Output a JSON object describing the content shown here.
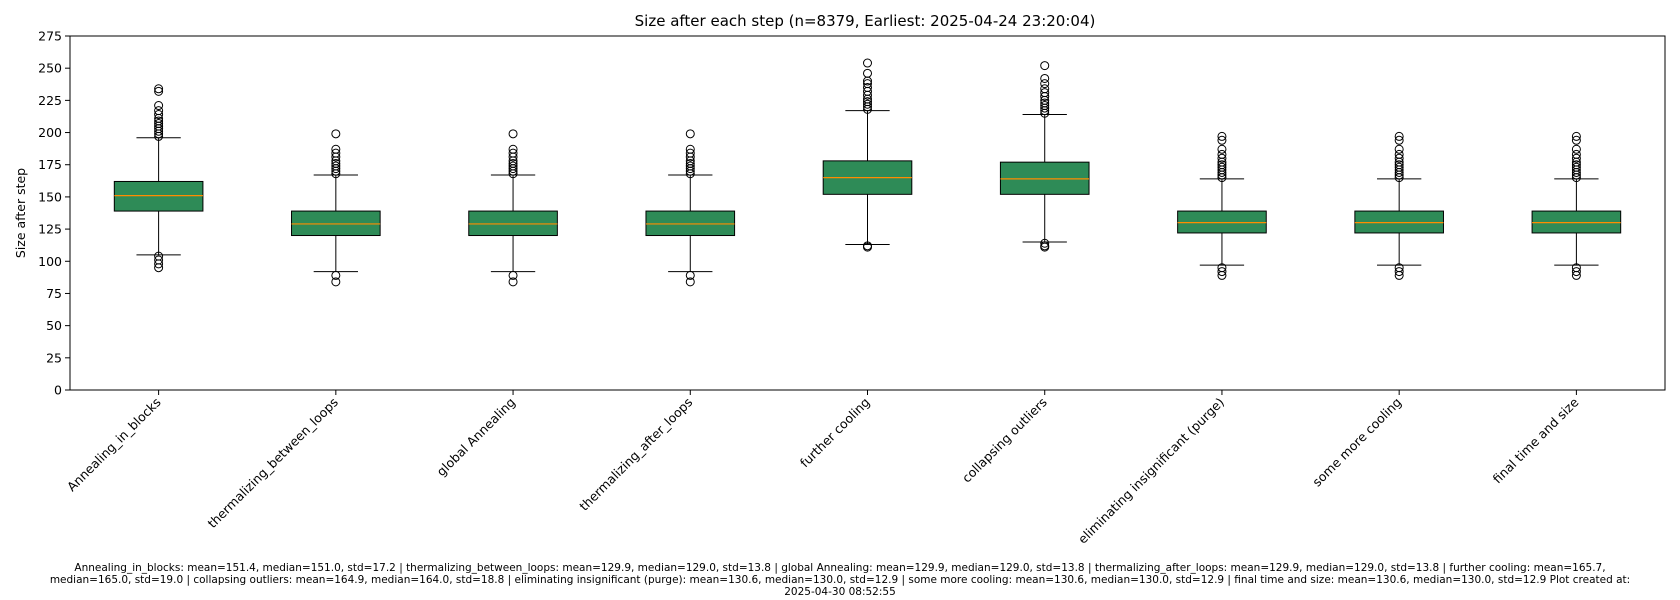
{
  "chart_data": {
    "type": "box",
    "title": "Size after each step (n=8379, Earliest: 2025-04-24 23:20:04)",
    "xlabel": "",
    "ylabel": "Size after step",
    "ylim": [
      0,
      275
    ],
    "yticks": [
      0,
      25,
      50,
      75,
      100,
      125,
      150,
      175,
      200,
      225,
      250,
      275
    ],
    "grid": false,
    "box_color": "#2e8b57",
    "median_color": "#ff8c00",
    "categories": [
      "Annealing_in_blocks",
      "thermalizing_between_loops",
      "global Annealing",
      "thermalizing_after_loops",
      "further cooling",
      "collapsing outliers",
      "eliminating insignificant (purge)",
      "some more cooling",
      "final time and size"
    ],
    "boxes": [
      {
        "q1": 139,
        "median": 151,
        "q3": 162,
        "whisker_low": 105,
        "whisker_high": 196,
        "outliers": [
          95,
          98,
          101,
          104,
          197,
          199,
          201,
          203,
          205,
          207,
          209,
          211,
          214,
          217,
          221,
          232,
          234
        ]
      },
      {
        "q1": 120,
        "median": 129,
        "q3": 139,
        "whisker_low": 92,
        "whisker_high": 167,
        "outliers": [
          84,
          89,
          168,
          170,
          172,
          174,
          176,
          178,
          181,
          184,
          187,
          199
        ]
      },
      {
        "q1": 120,
        "median": 129,
        "q3": 139,
        "whisker_low": 92,
        "whisker_high": 167,
        "outliers": [
          84,
          89,
          168,
          170,
          172,
          174,
          176,
          178,
          181,
          184,
          187,
          199
        ]
      },
      {
        "q1": 120,
        "median": 129,
        "q3": 139,
        "whisker_low": 92,
        "whisker_high": 167,
        "outliers": [
          84,
          89,
          168,
          170,
          172,
          174,
          176,
          178,
          181,
          184,
          187,
          199
        ]
      },
      {
        "q1": 152,
        "median": 165,
        "q3": 178,
        "whisker_low": 113,
        "whisker_high": 217,
        "outliers": [
          111,
          112,
          218,
          220,
          222,
          224,
          226,
          229,
          232,
          235,
          238,
          240,
          246,
          254
        ]
      },
      {
        "q1": 152,
        "median": 164,
        "q3": 177,
        "whisker_low": 115,
        "whisker_high": 214,
        "outliers": [
          111,
          112,
          114,
          215,
          217,
          219,
          221,
          223,
          225,
          228,
          231,
          234,
          238,
          242,
          252
        ]
      },
      {
        "q1": 122,
        "median": 130,
        "q3": 139,
        "whisker_low": 97,
        "whisker_high": 164,
        "outliers": [
          89,
          92,
          95,
          165,
          167,
          169,
          171,
          173,
          175,
          177,
          180,
          183,
          187,
          194,
          197
        ]
      },
      {
        "q1": 122,
        "median": 130,
        "q3": 139,
        "whisker_low": 97,
        "whisker_high": 164,
        "outliers": [
          89,
          92,
          95,
          165,
          167,
          169,
          171,
          173,
          175,
          177,
          180,
          183,
          187,
          194,
          197
        ]
      },
      {
        "q1": 122,
        "median": 130,
        "q3": 139,
        "whisker_low": 97,
        "whisker_high": 164,
        "outliers": [
          89,
          92,
          95,
          165,
          167,
          169,
          171,
          173,
          175,
          177,
          180,
          183,
          187,
          194,
          197
        ]
      }
    ]
  },
  "footer": {
    "line1": "Annealing_in_blocks: mean=151.4, median=151.0, std=17.2 | thermalizing_between_loops: mean=129.9, median=129.0, std=13.8 | global Annealing: mean=129.9, median=129.0, std=13.8 | thermalizing_after_loops: mean=129.9, median=129.0, std=13.8 | further cooling: mean=165.7,",
    "line2": "median=165.0, std=19.0 | collapsing outliers: mean=164.9, median=164.0, std=18.8 | eliminating insignificant (purge): mean=130.6, median=130.0, std=12.9 | some more cooling: mean=130.6, median=130.0, std=12.9 | final time and size: mean=130.6, median=130.0, std=12.9    Plot created at:",
    "line3": "2025-04-30 08:52:55"
  }
}
